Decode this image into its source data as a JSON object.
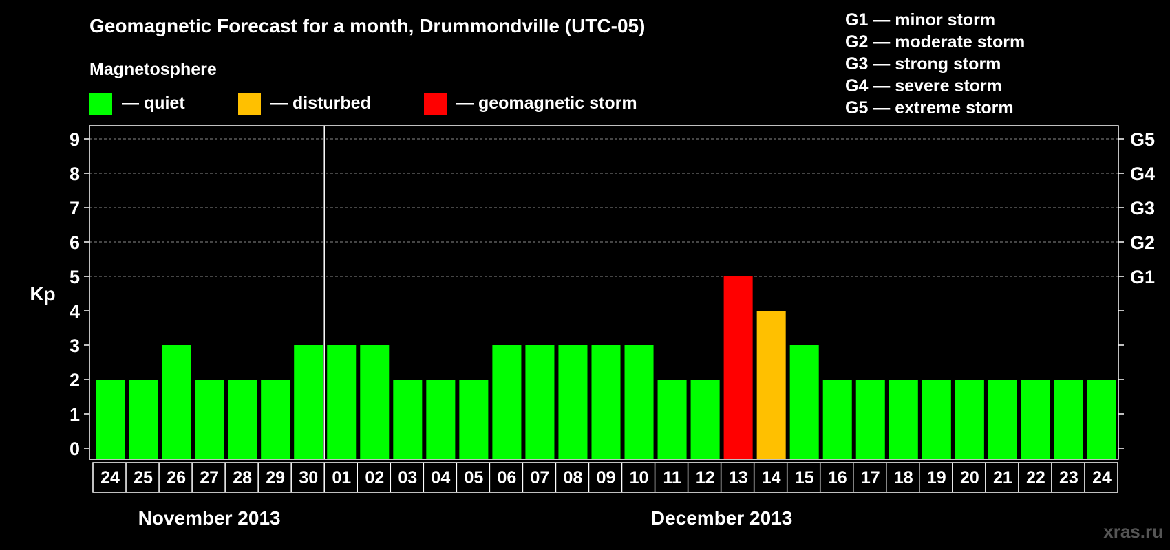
{
  "chart_data": {
    "type": "bar",
    "title": "Geomagnetic Forecast for a month, Drummondville (UTC-05)",
    "ylabel": "Kp",
    "ylim": [
      0,
      9
    ],
    "yticks": [
      "0",
      "1",
      "2",
      "3",
      "4",
      "5",
      "6",
      "7",
      "8",
      "9"
    ],
    "grid": "dashed horizontal lines at 5, 6, 7, 8, 9",
    "legend_title": "Magnetosphere",
    "legend": [
      {
        "label": "— quiet",
        "color": "#00ff00"
      },
      {
        "label": "— disturbed",
        "color": "#ffc000"
      },
      {
        "label": "— geomagnetic storm",
        "color": "#ff0000"
      }
    ],
    "storm_scale": [
      {
        "label": "G1 — minor storm"
      },
      {
        "label": "G2 — moderate storm"
      },
      {
        "label": "G3 — strong storm"
      },
      {
        "label": "G4 — severe storm"
      },
      {
        "label": "G5 — extreme storm"
      }
    ],
    "right_axis": [
      {
        "label": "G1",
        "kp": 5
      },
      {
        "label": "G2",
        "kp": 6
      },
      {
        "label": "G3",
        "kp": 7
      },
      {
        "label": "G4",
        "kp": 8
      },
      {
        "label": "G5",
        "kp": 9
      }
    ],
    "categories": [
      "24",
      "25",
      "26",
      "27",
      "28",
      "29",
      "30",
      "01",
      "02",
      "03",
      "04",
      "05",
      "06",
      "07",
      "08",
      "09",
      "10",
      "11",
      "12",
      "13",
      "14",
      "15",
      "16",
      "17",
      "18",
      "19",
      "20",
      "21",
      "22",
      "23",
      "24"
    ],
    "values": [
      2,
      2,
      3,
      2,
      2,
      2,
      3,
      3,
      3,
      2,
      2,
      2,
      3,
      3,
      3,
      3,
      3,
      2,
      2,
      5,
      4,
      3,
      2,
      2,
      2,
      2,
      2,
      2,
      2,
      2,
      2
    ],
    "levels": [
      "quiet",
      "quiet",
      "quiet",
      "quiet",
      "quiet",
      "quiet",
      "quiet",
      "quiet",
      "quiet",
      "quiet",
      "quiet",
      "quiet",
      "quiet",
      "quiet",
      "quiet",
      "quiet",
      "quiet",
      "quiet",
      "quiet",
      "storm",
      "disturbed",
      "quiet",
      "quiet",
      "quiet",
      "quiet",
      "quiet",
      "quiet",
      "quiet",
      "quiet",
      "quiet",
      "quiet"
    ],
    "level_colors": {
      "quiet": "#00ff00",
      "disturbed": "#ffc000",
      "storm": "#ff0000"
    },
    "months": [
      {
        "label": "November 2013",
        "first_index": 0,
        "last_index": 6
      },
      {
        "label": "December 2013",
        "first_index": 7,
        "last_index": 30
      }
    ],
    "watermark": "xras.ru"
  }
}
